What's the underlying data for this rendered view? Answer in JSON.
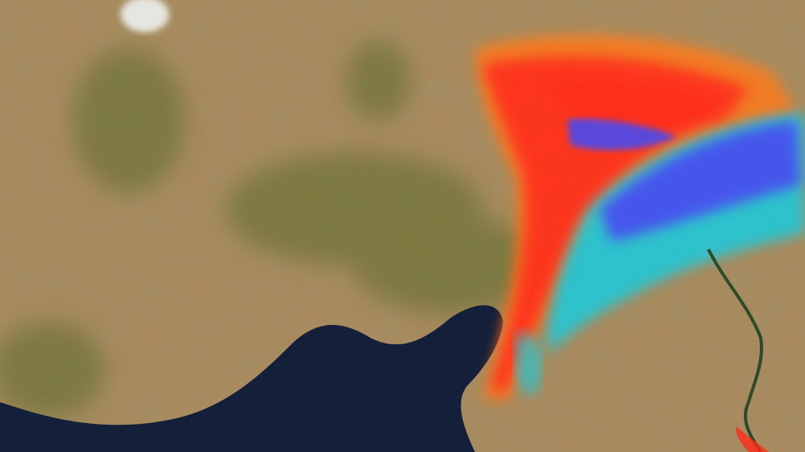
{
  "map": {
    "colors": {
      "land": "#a88a5e",
      "land_dark": "#7d6e3e",
      "vegetation": "#5b6a2c",
      "sea": "#141f3a",
      "salt_lake": "#e6e6e0",
      "uplift_red": "#ff2a1a",
      "uplift_orange": "#ff7a1a",
      "subsidence_blue": "#4a4cf0",
      "subsidence_cyan": "#23c8d8",
      "river": "#2e4a2a"
    }
  }
}
